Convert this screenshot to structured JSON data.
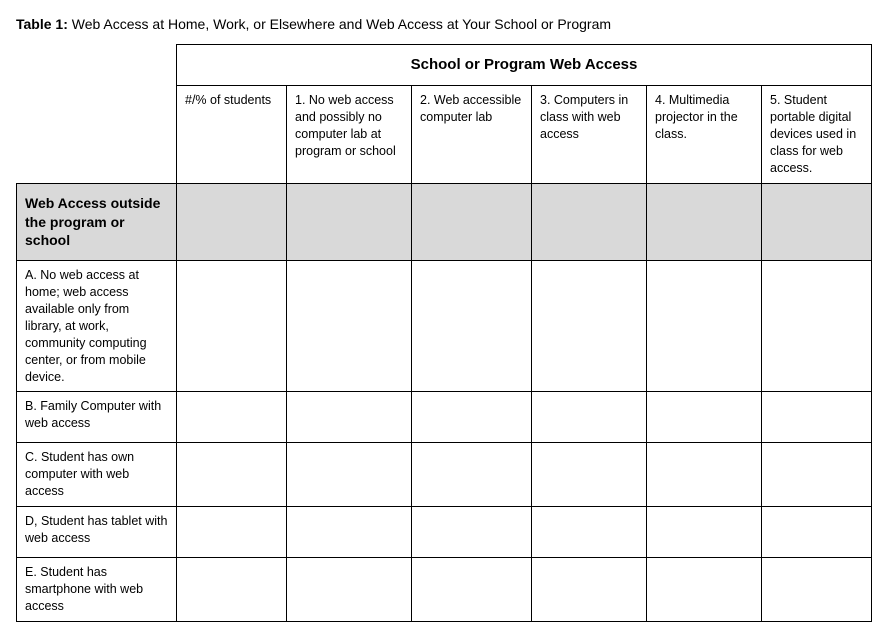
{
  "caption": {
    "label": "Table 1:",
    "text": "Web Access at Home, Work, or Elsewhere and Web Access at Your School or Program"
  },
  "superHeader": "School or Program Web Access",
  "columns": [
    "#/% of students",
    "1. No web access and possibly no computer lab at program or school",
    "2. Web accessible computer lab",
    "3. Computers in class with web access",
    "4. Multimedia projector in the class.",
    "5. Student portable digital devices used in class for web access."
  ],
  "sectionTitle": "Web Access outside the program or school",
  "rows": [
    "A. No web access at home; web access available only from library, at work, community computing center, or from mobile device.",
    "B. Family Computer with web access",
    "C. Student has own computer with web access",
    "D, Student has tablet with web access",
    "E. Student has smartphone with web access"
  ],
  "colors": {
    "shaded": "#d9d9d9",
    "border": "#000000",
    "background": "#ffffff"
  }
}
